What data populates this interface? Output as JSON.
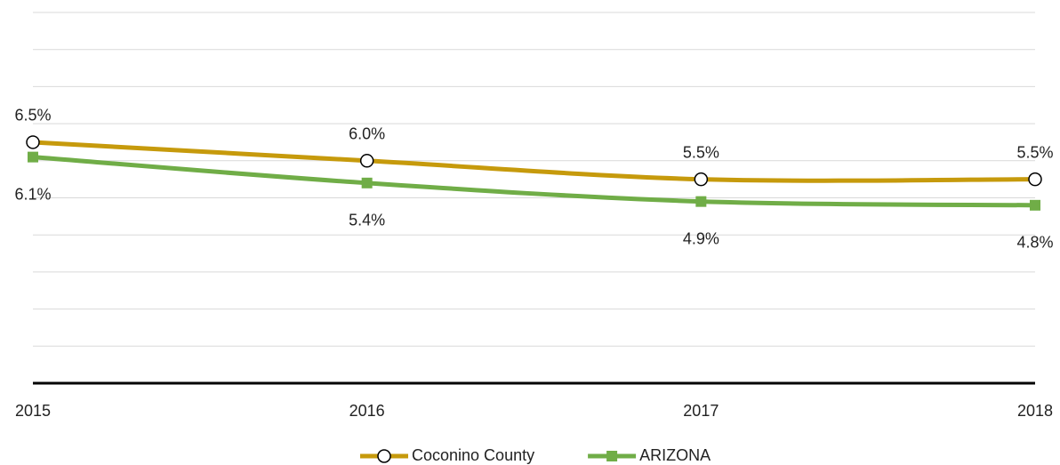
{
  "chart_data": {
    "type": "line",
    "categories": [
      "2015",
      "2016",
      "2017",
      "2018"
    ],
    "series": [
      {
        "name": "Coconino County",
        "color": "#c69a0c",
        "marker": "circle",
        "values": [
          6.5,
          6.0,
          5.5,
          5.5
        ],
        "value_labels": [
          "6.5%",
          "6.0%",
          "5.5%",
          "5.5%"
        ]
      },
      {
        "name": "ARIZONA",
        "color": "#70ad47",
        "marker": "square",
        "values": [
          6.1,
          5.4,
          4.9,
          4.8
        ],
        "value_labels": [
          "6.1%",
          "5.4%",
          "4.9%",
          "4.8%"
        ]
      }
    ],
    "ylim": [
      0,
      10
    ],
    "yticks": [
      0,
      1,
      2,
      3,
      4,
      5,
      6,
      7,
      8,
      9,
      10
    ],
    "grid": true,
    "legend": "bottom"
  }
}
